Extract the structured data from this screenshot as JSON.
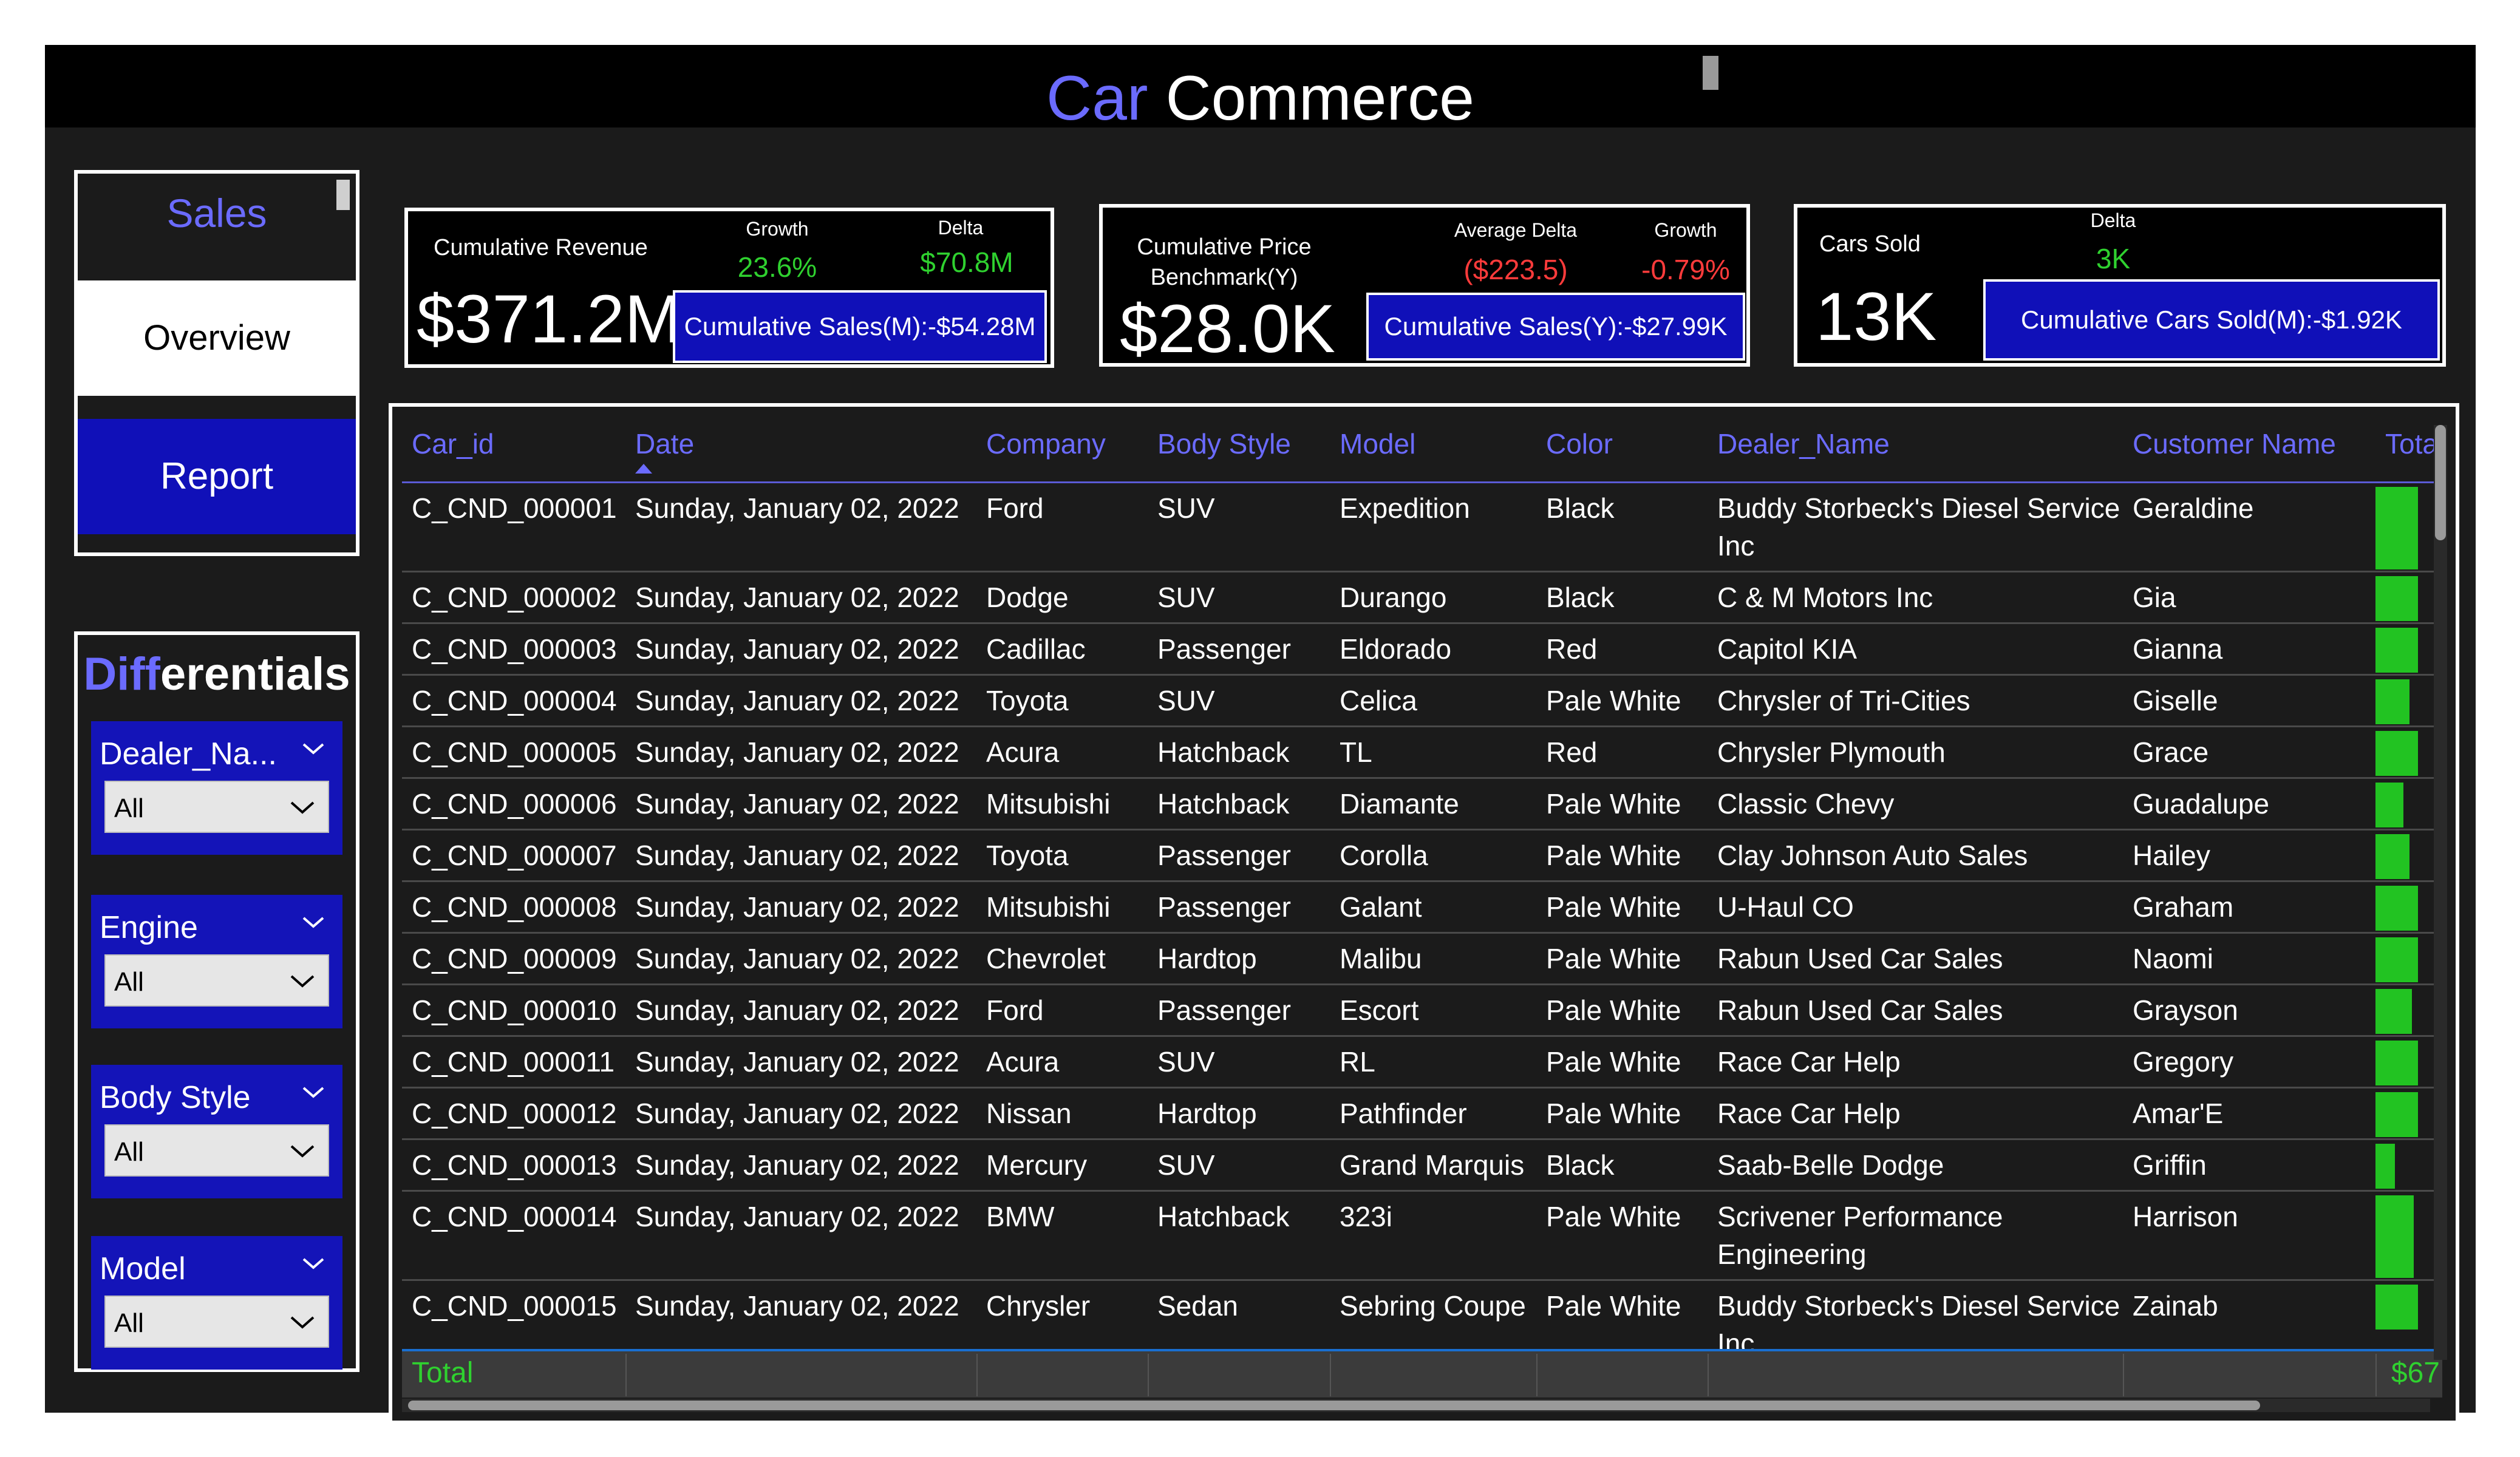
{
  "header": {
    "title_accent": "Car",
    "title_rest": "Commerce"
  },
  "nav": {
    "sales": "Sales",
    "overview": "Overview",
    "report": "Report"
  },
  "differentials": {
    "title_accent": "Diff",
    "title_rest": "erentials",
    "slicers": [
      {
        "label": "Dealer_Na...",
        "value": "All"
      },
      {
        "label": "Engine",
        "value": "All"
      },
      {
        "label": "Body Style",
        "value": "All"
      },
      {
        "label": "Model",
        "value": "All"
      }
    ]
  },
  "kpis": {
    "revenue": {
      "label": "Cumulative Revenue",
      "value": "$371.2M",
      "growth_label": "Growth",
      "growth_value": "23.6%",
      "delta_label": "Delta",
      "delta_value": "$70.8M",
      "button": "Cumulative Sales(M):-$54.28M"
    },
    "price": {
      "label": "Cumulative Price Benchmark(Y)",
      "value": "$28.0K",
      "avg_delta_label": "Average Delta",
      "avg_delta_value": "($223.5)",
      "growth_label": "Growth",
      "growth_value": "-0.79%",
      "button": "Cumulative Sales(Y):-$27.99K"
    },
    "cars": {
      "label": "Cars Sold",
      "value": "13K",
      "delta_label": "Delta",
      "delta_value": "3K",
      "button": "Cumulative Cars Sold(M):-$1.92K"
    }
  },
  "colors": {
    "accent": "#6b6bff",
    "button_blue": "#1010b8",
    "positive": "#2fd12f",
    "negative": "#ff3b3b",
    "bar": "#22c322"
  },
  "table": {
    "columns": [
      "Car_id",
      "Date",
      "Company",
      "Body Style",
      "Model",
      "Color",
      "Dealer_Name",
      "Customer Name",
      "Tota"
    ],
    "rows": [
      [
        "C_CND_000001",
        "Sunday, January 02, 2022",
        "Ford",
        "SUV",
        "Expedition",
        "Black",
        "Buddy Storbeck's Diesel Service Inc",
        "Geraldine"
      ],
      [
        "C_CND_000002",
        "Sunday, January 02, 2022",
        "Dodge",
        "SUV",
        "Durango",
        "Black",
        "C & M Motors Inc",
        "Gia"
      ],
      [
        "C_CND_000003",
        "Sunday, January 02, 2022",
        "Cadillac",
        "Passenger",
        "Eldorado",
        "Red",
        "Capitol KIA",
        "Gianna"
      ],
      [
        "C_CND_000004",
        "Sunday, January 02, 2022",
        "Toyota",
        "SUV",
        "Celica",
        "Pale White",
        "Chrysler of Tri-Cities",
        "Giselle"
      ],
      [
        "C_CND_000005",
        "Sunday, January 02, 2022",
        "Acura",
        "Hatchback",
        "TL",
        "Red",
        "Chrysler Plymouth",
        "Grace"
      ],
      [
        "C_CND_000006",
        "Sunday, January 02, 2022",
        "Mitsubishi",
        "Hatchback",
        "Diamante",
        "Pale White",
        "Classic Chevy",
        "Guadalupe"
      ],
      [
        "C_CND_000007",
        "Sunday, January 02, 2022",
        "Toyota",
        "Passenger",
        "Corolla",
        "Pale White",
        "Clay Johnson Auto Sales",
        "Hailey"
      ],
      [
        "C_CND_000008",
        "Sunday, January 02, 2022",
        "Mitsubishi",
        "Passenger",
        "Galant",
        "Pale White",
        "U-Haul CO",
        "Graham"
      ],
      [
        "C_CND_000009",
        "Sunday, January 02, 2022",
        "Chevrolet",
        "Hardtop",
        "Malibu",
        "Pale White",
        "Rabun Used Car Sales",
        "Naomi"
      ],
      [
        "C_CND_000010",
        "Sunday, January 02, 2022",
        "Ford",
        "Passenger",
        "Escort",
        "Pale White",
        "Rabun Used Car Sales",
        "Grayson"
      ],
      [
        "C_CND_000011",
        "Sunday, January 02, 2022",
        "Acura",
        "SUV",
        "RL",
        "Pale White",
        "Race Car Help",
        "Gregory"
      ],
      [
        "C_CND_000012",
        "Sunday, January 02, 2022",
        "Nissan",
        "Hardtop",
        "Pathfinder",
        "Pale White",
        "Race Car Help",
        "Amar'E"
      ],
      [
        "C_CND_000013",
        "Sunday, January 02, 2022",
        "Mercury",
        "SUV",
        "Grand Marquis",
        "Black",
        "Saab-Belle Dodge",
        "Griffin"
      ],
      [
        "C_CND_000014",
        "Sunday, January 02, 2022",
        "BMW",
        "Hatchback",
        "323i",
        "Pale White",
        "Scrivener Performance Engineering",
        "Harrison"
      ],
      [
        "C_CND_000015",
        "Sunday, January 02, 2022",
        "Chrysler",
        "Sedan",
        "Sebring Coupe",
        "Pale White",
        "Buddy Storbeck's Diesel Service Inc",
        "Zainab"
      ]
    ],
    "total_bar_fractions": [
      1.0,
      1.0,
      1.0,
      0.8,
      1.0,
      0.65,
      0.8,
      1.0,
      1.0,
      0.85,
      1.0,
      1.0,
      0.45,
      0.9,
      1.0
    ],
    "total_label": "Total",
    "total_value": "$67"
  }
}
